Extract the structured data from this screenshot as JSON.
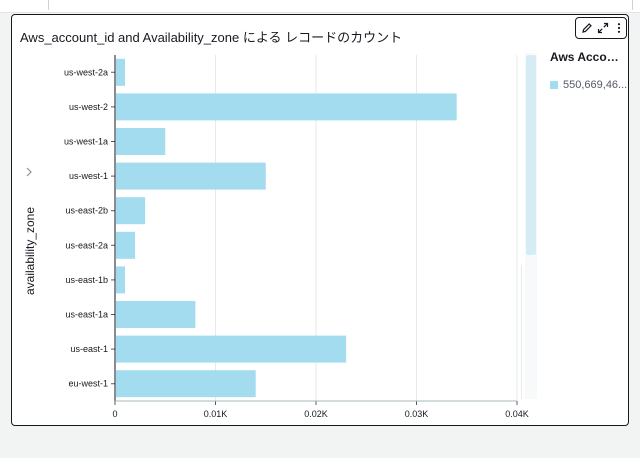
{
  "visual": {
    "title": "Aws_account_id and Availability_zone による レコードのカウント",
    "toolbar": [
      "pencil-icon",
      "expand-icon",
      "more-vertical-icon"
    ]
  },
  "legend": {
    "title": "Aws Accoun...",
    "items": [
      {
        "label": "550,669,46...",
        "color": "#a4dcef"
      }
    ]
  },
  "colors": {
    "bar": "#a4dcef",
    "border": "#16191f",
    "grid": "#e7e9ea"
  },
  "chart_data": {
    "type": "bar",
    "orientation": "horizontal",
    "title": "Aws_account_id and Availability_zone による レコードのカウント",
    "ylabel": "availability_zone",
    "xlabel": "",
    "categories": [
      "us-west-2a",
      "us-west-2",
      "us-west-1a",
      "us-west-1",
      "us-east-2b",
      "us-east-2a",
      "us-east-1b",
      "us-east-1a",
      "us-east-1",
      "eu-west-1"
    ],
    "series": [
      {
        "name": "550,669,46...",
        "values": [
          1,
          34,
          5,
          15,
          3,
          2,
          1,
          8,
          23,
          14
        ]
      }
    ],
    "xlim": [
      0,
      40
    ],
    "xticks": [
      0,
      10,
      20,
      30,
      40
    ],
    "xtick_labels": [
      "0",
      "0.01K",
      "0.02K",
      "0.03K",
      "0.04K"
    ],
    "grid": true,
    "legend_position": "right"
  }
}
